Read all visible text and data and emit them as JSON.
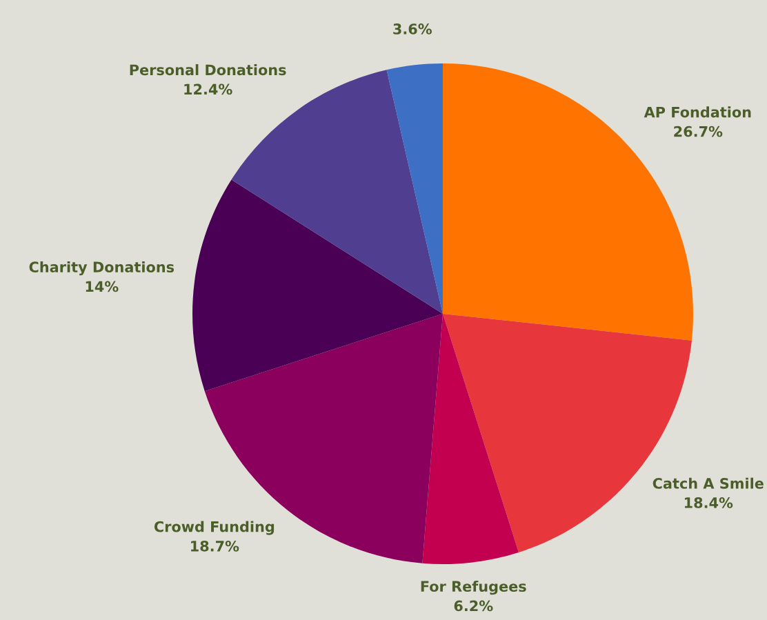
{
  "chart_data": {
    "type": "pie",
    "categories": [
      "AP Fondation",
      "Catch A Smile",
      "For Refugees",
      "Crowd Funding",
      "Charity Donations",
      "Personal Donations",
      null
    ],
    "values": [
      26.7,
      18.4,
      6.2,
      18.7,
      14,
      12.4,
      3.6
    ],
    "value_labels": [
      "26.7%",
      "18.4%",
      "6.2%",
      "18.7%",
      "14%",
      "12.4%",
      "3.6%"
    ],
    "colors": [
      "#ff7300",
      "#e8363d",
      "#c2004f",
      "#8a005c",
      "#4a0055",
      "#503f91",
      "#3d6fc4"
    ],
    "legend": false
  }
}
